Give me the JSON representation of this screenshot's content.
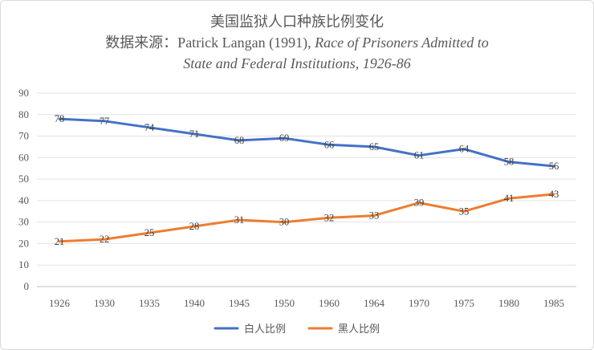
{
  "header": {
    "title": "美国监狱人口种族比例变化",
    "source_prefix": "数据来源：Patrick Langan (1991), ",
    "source_work_line1": "Race of Prisoners Admitted to",
    "source_work_line2": "State and Federal Institutions, 1926-86"
  },
  "chart_data": {
    "type": "line",
    "categories": [
      "1926",
      "1930",
      "1935",
      "1940",
      "1945",
      "1950",
      "1960",
      "1964",
      "1970",
      "1975",
      "1980",
      "1985"
    ],
    "ylim": [
      0,
      90
    ],
    "yticks": [
      0,
      10,
      20,
      30,
      40,
      50,
      60,
      70,
      80,
      90
    ],
    "grid": true,
    "legend_position": "bottom",
    "series": [
      {
        "name": "白人比例",
        "color": "#4472c4",
        "values": [
          78,
          77,
          74,
          71,
          68,
          69,
          66,
          65,
          61,
          64,
          58,
          56
        ]
      },
      {
        "name": "黑人比例",
        "color": "#ed7d31",
        "values": [
          21,
          22,
          25,
          28,
          31,
          30,
          32,
          33,
          39,
          35,
          41,
          43
        ]
      }
    ]
  }
}
